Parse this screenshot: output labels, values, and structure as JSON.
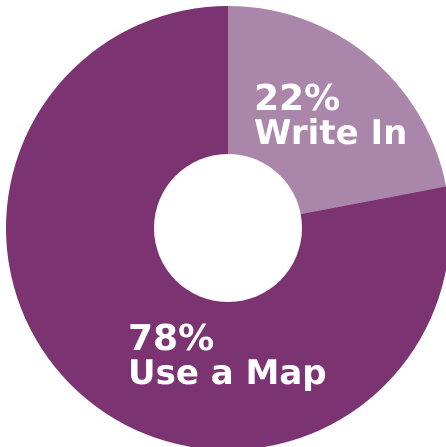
{
  "chart_data": {
    "type": "pie",
    "subtype": "donut",
    "title": "",
    "series": [
      {
        "name": "",
        "values": [
          22,
          78
        ],
        "categories": [
          "Write In",
          "Use a Map"
        ],
        "labels": [
          {
            "percent": "22%",
            "text": "Write In"
          },
          {
            "percent": "78%",
            "text": "Use a Map"
          }
        ]
      }
    ],
    "colors": {
      "write_in": "#ab86ab",
      "use_a_map": "#7b3372",
      "hole": "#ffffff"
    },
    "legend": "none"
  }
}
